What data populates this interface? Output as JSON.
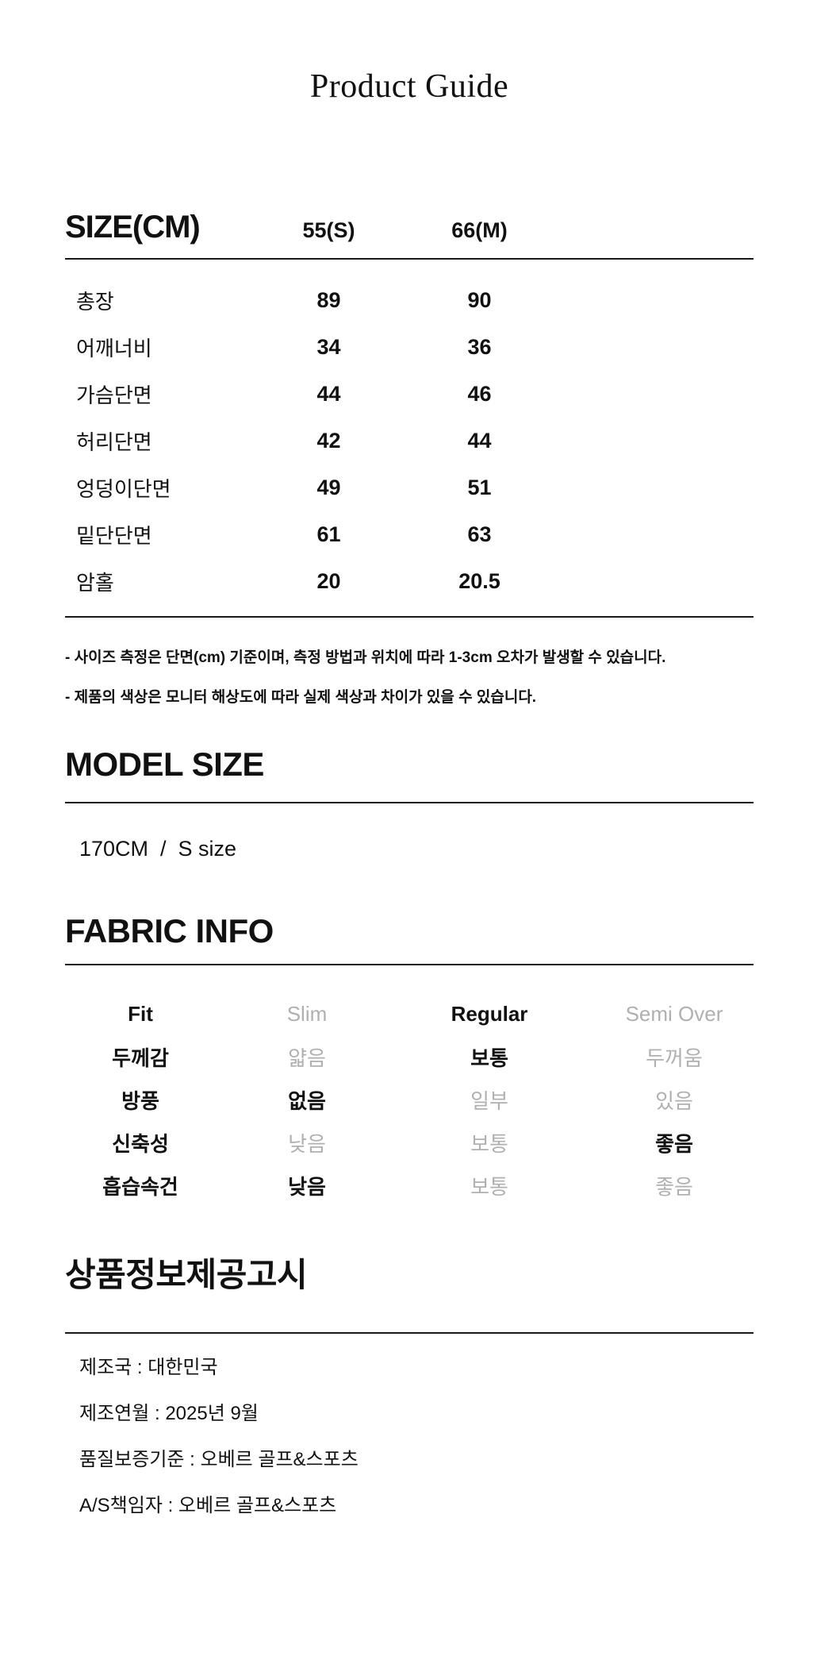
{
  "page": {
    "title": "Product Guide"
  },
  "size_section": {
    "heading": "SIZE(CM)",
    "columns": [
      "55(S)",
      "66(M)"
    ],
    "rows": [
      {
        "label": "총장",
        "values": [
          "89",
          "90"
        ]
      },
      {
        "label": "어깨너비",
        "values": [
          "34",
          "36"
        ]
      },
      {
        "label": "가슴단면",
        "values": [
          "44",
          "46"
        ]
      },
      {
        "label": "허리단면",
        "values": [
          "42",
          "44"
        ]
      },
      {
        "label": "엉덩이단면",
        "values": [
          "49",
          "51"
        ]
      },
      {
        "label": "밑단단면",
        "values": [
          "61",
          "63"
        ]
      },
      {
        "label": "암홀",
        "values": [
          "20",
          "20.5"
        ]
      }
    ],
    "notes": [
      "- 사이즈 측정은 단면(cm) 기준이며, 측정 방법과 위치에 따라 1-3cm 오차가 발생할 수 있습니다.",
      "- 제품의 색상은 모니터 해상도에 따라 실제 색상과 차이가 있을 수 있습니다."
    ]
  },
  "model_section": {
    "heading": "MODEL SIZE",
    "value": "170CM  /  S size"
  },
  "fabric_section": {
    "heading": "FABRIC INFO",
    "rows": [
      {
        "label": "Fit",
        "options": [
          "Slim",
          "Regular",
          "Semi Over"
        ],
        "active": 1
      },
      {
        "label": "두께감",
        "options": [
          "얇음",
          "보통",
          "두꺼움"
        ],
        "active": 1
      },
      {
        "label": "방풍",
        "options": [
          "없음",
          "일부",
          "있음"
        ],
        "active": 0
      },
      {
        "label": "신축성",
        "options": [
          "낮음",
          "보통",
          "좋음"
        ],
        "active": 2
      },
      {
        "label": "흡습속건",
        "options": [
          "낮음",
          "보통",
          "좋음"
        ],
        "active": 0
      }
    ]
  },
  "info_section": {
    "heading": "상품정보제공고시",
    "items": [
      "제조국 : 대한민국",
      "제조연월 : 2025년 9월",
      "품질보증기준 : 오베르 골프&스포츠",
      "A/S책임자 : 오베르 골프&스포츠"
    ]
  },
  "colors": {
    "text": "#111111",
    "inactive_option": "#b0b0b0",
    "rule": "#191919"
  }
}
